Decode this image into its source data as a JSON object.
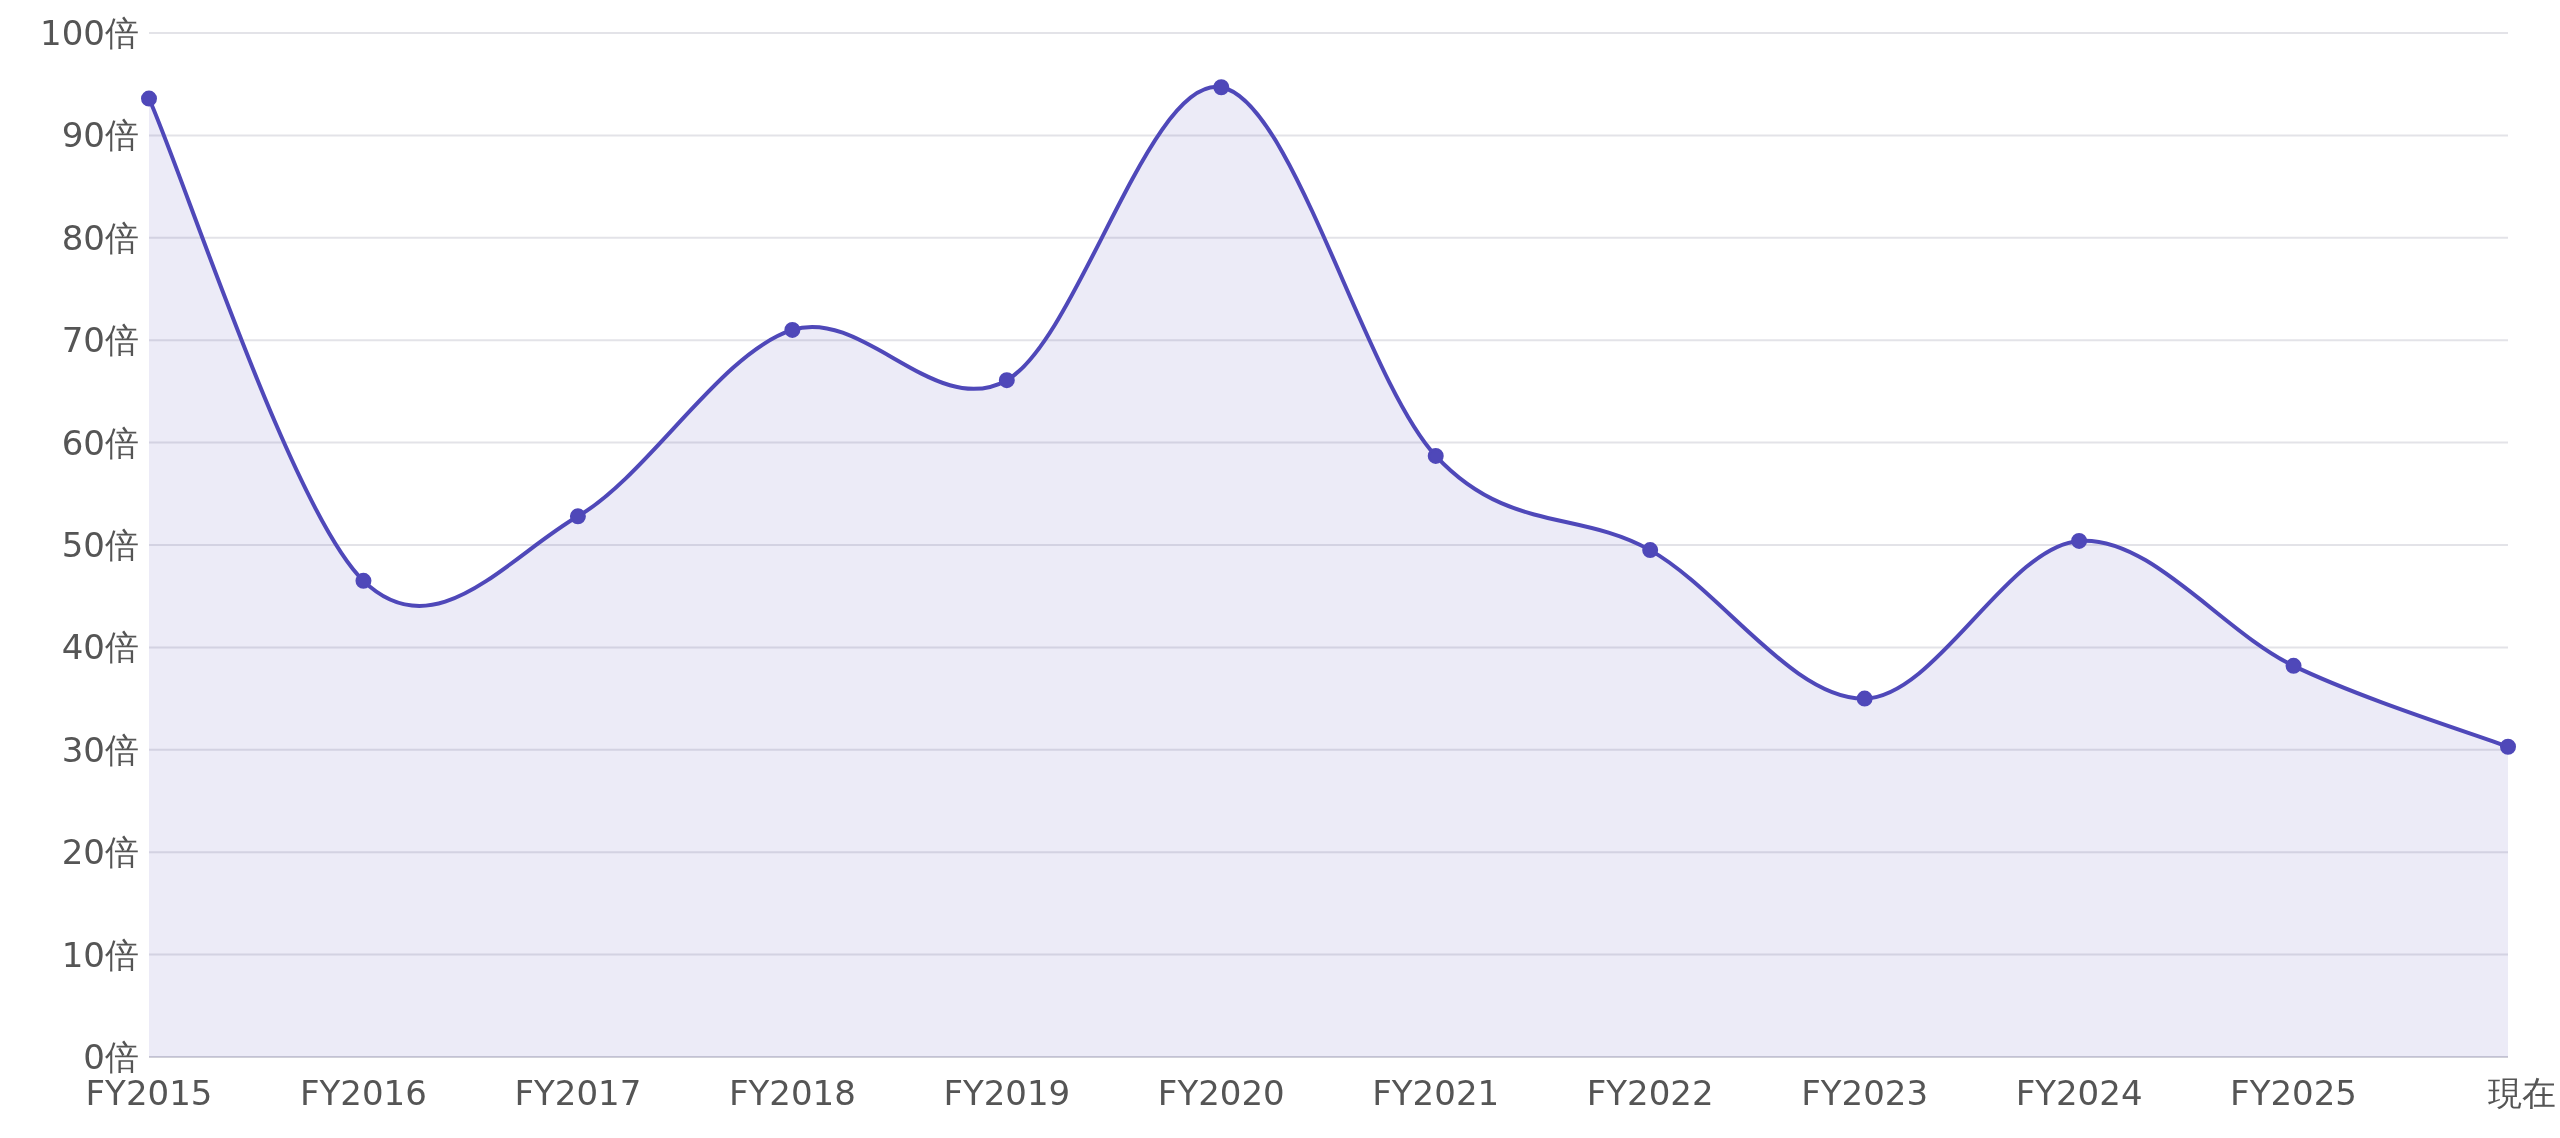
{
  "chart_data": {
    "type": "area",
    "categories": [
      "FY2015",
      "FY2016",
      "FY2017",
      "FY2018",
      "FY2019",
      "FY2020",
      "FY2021",
      "FY2022",
      "FY2023",
      "FY2024",
      "FY2025",
      "現在"
    ],
    "series": [
      {
        "color": "#4f48b9",
        "values": [
          93.6,
          46.5,
          52.8,
          71.0,
          66.1,
          94.7,
          58.7,
          49.5,
          35.0,
          50.4,
          38.2,
          30.3
        ]
      }
    ],
    "ylim": [
      0,
      100
    ],
    "yticks": [
      {
        "value": 0,
        "label": "0倍"
      },
      {
        "value": 10,
        "label": "10倍"
      },
      {
        "value": 20,
        "label": "20倍"
      },
      {
        "value": 30,
        "label": "30倍"
      },
      {
        "value": 40,
        "label": "40倍"
      },
      {
        "value": 50,
        "label": "50倍"
      },
      {
        "value": 60,
        "label": "60倍"
      },
      {
        "value": 70,
        "label": "70倍"
      },
      {
        "value": 80,
        "label": "80倍"
      },
      {
        "value": 90,
        "label": "90倍"
      },
      {
        "value": 100,
        "label": "100倍"
      }
    ],
    "grid": "y",
    "marker": "circle",
    "line_style": "solid"
  }
}
